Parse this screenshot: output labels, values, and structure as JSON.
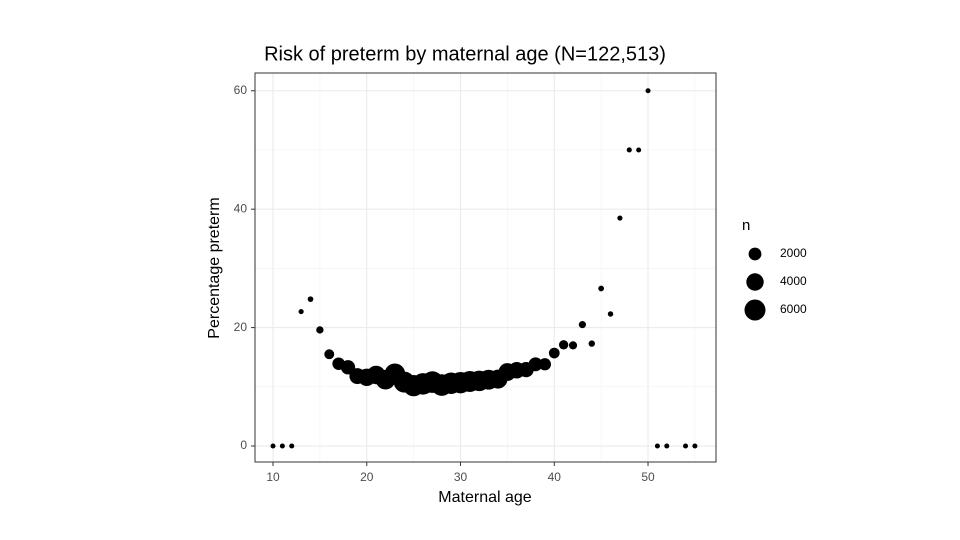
{
  "chart_data": {
    "type": "scatter",
    "title": "Risk of preterm by maternal age (N=122,513)",
    "x_label": "Maternal age",
    "y_label": "Percentage preterm",
    "x": [
      10,
      11,
      12,
      13,
      14,
      15,
      16,
      17,
      18,
      19,
      20,
      21,
      22,
      23,
      24,
      25,
      26,
      27,
      28,
      29,
      30,
      31,
      32,
      33,
      34,
      35,
      36,
      37,
      38,
      39,
      40,
      41,
      42,
      43,
      44,
      45,
      46,
      47,
      48,
      49,
      50,
      51,
      52,
      54,
      55
    ],
    "values": [
      0,
      0,
      0,
      22.7,
      24.8,
      19.6,
      15.5,
      13.9,
      13.3,
      11.8,
      11.6,
      12.0,
      11.2,
      12.2,
      10.8,
      10.2,
      10.5,
      10.8,
      10.3,
      10.6,
      10.7,
      10.9,
      11.0,
      11.2,
      11.3,
      12.5,
      12.8,
      12.9,
      13.8,
      13.8,
      15.7,
      17.1,
      17.0,
      20.5,
      17.3,
      26.6,
      22.3,
      38.5,
      50,
      50,
      60,
      0,
      0,
      0,
      0
    ],
    "sizes": [
      1,
      1,
      2,
      22,
      101,
      410,
      1050,
      1900,
      2600,
      3300,
      4000,
      4600,
      5200,
      5800,
      6000,
      6200,
      6300,
      6400,
      6400,
      6300,
      6200,
      6000,
      5700,
      5300,
      4800,
      4200,
      3600,
      3000,
      2400,
      1800,
      1300,
      900,
      600,
      390,
      230,
      120,
      67,
      26,
      12,
      6,
      5,
      2,
      1,
      1,
      1
    ],
    "color": "#000000",
    "xlim": [
      8.08,
      57.25
    ],
    "ylim": [
      -2.7,
      63.0
    ],
    "xticks": [
      10,
      20,
      30,
      40,
      50
    ],
    "yticks": [
      0,
      20,
      40,
      60
    ],
    "grid": true,
    "size_legend": {
      "title": "n",
      "values": [
        2000,
        4000,
        6000
      ]
    }
  }
}
